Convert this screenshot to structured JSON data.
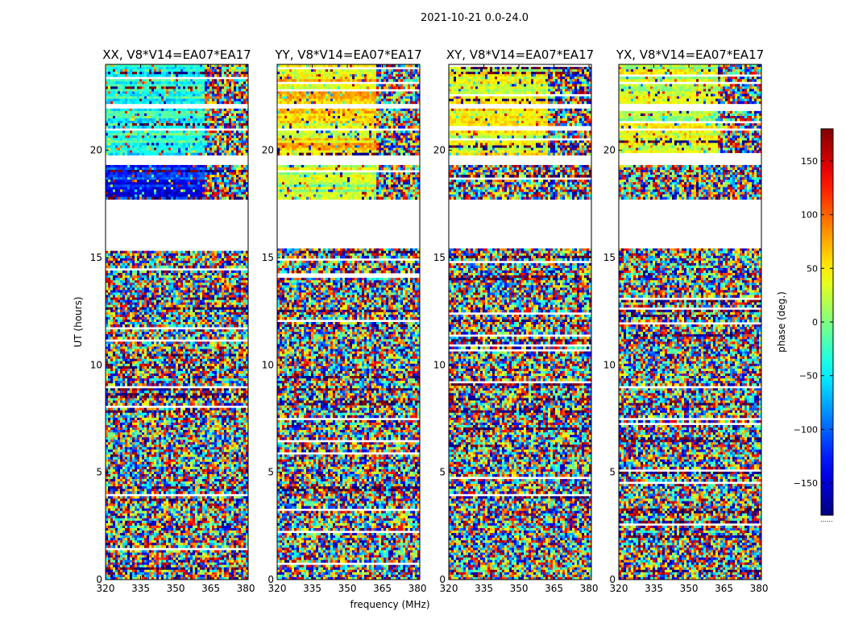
{
  "figure": {
    "suptitle": "2021-10-21 0.0-24.0",
    "xlabel": "frequency (MHz)",
    "ylabel": "UT (hours)",
    "colorbar_label": "phase (deg.)",
    "colorbar_footer": "......"
  },
  "chart_data": {
    "type": "heatmap",
    "xlim": [
      320,
      381
    ],
    "ylim": [
      0,
      24
    ],
    "x_ticks": [
      320,
      335,
      350,
      365,
      380
    ],
    "y_ticks": [
      0,
      5,
      10,
      15,
      20
    ],
    "clim": [
      -180,
      180
    ],
    "colormap": "jet",
    "colorbar_ticks": [
      -150,
      -100,
      -50,
      0,
      50,
      100,
      150
    ],
    "flagged_ut_ranges": [
      [
        15.45,
        15.85
      ],
      [
        15.9,
        17.7
      ],
      [
        19.3,
        19.8
      ],
      [
        20.9,
        21.05
      ],
      [
        21.9,
        22.15
      ]
    ],
    "panels": [
      {
        "title": "XX, V8*V14=EA07*EA17",
        "coherent_phase_low_ut": -125,
        "coherent_phase_high_ut": -35
      },
      {
        "title": "YY, V8*V14=EA07*EA17",
        "coherent_phase_low_ut": 25,
        "coherent_phase_high_ut": 55
      },
      {
        "title": "XY, V8*V14=EA07*EA17",
        "coherent_phase_low_ut": null,
        "coherent_phase_high_ut": 40
      },
      {
        "title": "YX, V8*V14=EA07*EA17",
        "coherent_phase_low_ut": null,
        "coherent_phase_high_ut": 30
      }
    ]
  }
}
